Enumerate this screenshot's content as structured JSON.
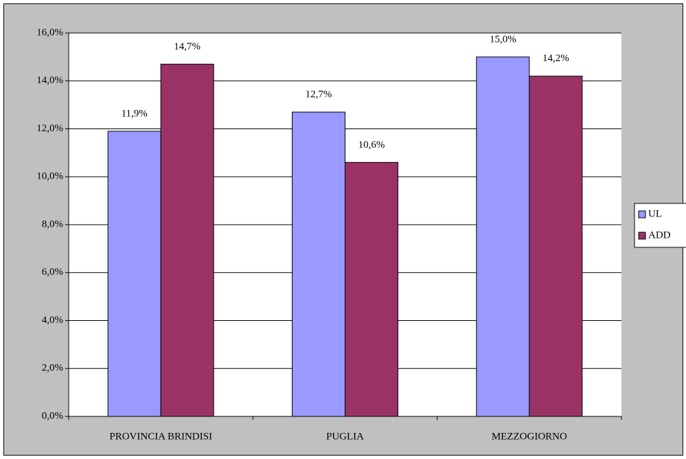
{
  "chart_data": {
    "type": "bar",
    "categories": [
      "PROVINCIA BRINDISI",
      "PUGLIA",
      "MEZZOGIORNO"
    ],
    "series": [
      {
        "name": "UL",
        "color": "#9999ff",
        "values": [
          11.9,
          12.7,
          15.0
        ],
        "value_labels": [
          "11,9%",
          "12,7%",
          "15,0%"
        ]
      },
      {
        "name": "ADD",
        "color": "#993366",
        "values": [
          14.7,
          10.6,
          14.2
        ],
        "value_labels": [
          "14,7%",
          "10,6%",
          "14,2%"
        ]
      }
    ],
    "ylim": [
      0,
      16
    ],
    "yticks": [
      {
        "value": 0,
        "label": "0,0%"
      },
      {
        "value": 2,
        "label": "2,0%"
      },
      {
        "value": 4,
        "label": "4,0%"
      },
      {
        "value": 6,
        "label": "6,0%"
      },
      {
        "value": 8,
        "label": "8,0%"
      },
      {
        "value": 10,
        "label": "10,0%"
      },
      {
        "value": 12,
        "label": "12,0%"
      },
      {
        "value": 14,
        "label": "14,0%"
      },
      {
        "value": 16,
        "label": "16,0%"
      }
    ],
    "grid": true,
    "legend": "right"
  }
}
